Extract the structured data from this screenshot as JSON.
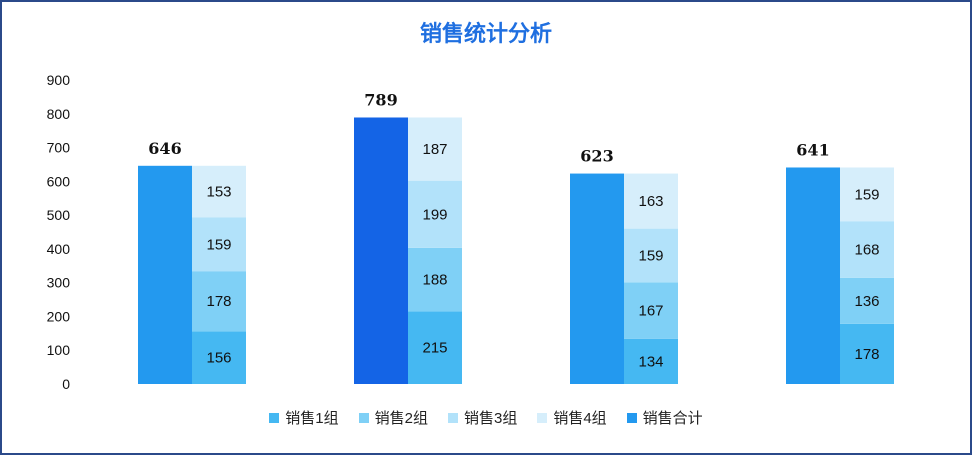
{
  "chart_data": {
    "type": "bar",
    "title": "销售统计分析",
    "yticks": [
      0,
      100,
      200,
      300,
      400,
      500,
      600,
      700,
      800,
      900
    ],
    "ylim": [
      0,
      900
    ],
    "legend_position": "bottom",
    "categories": [
      "",
      "",
      "",
      ""
    ],
    "series": [
      {
        "name": "销售1组",
        "color": "#45b8f2",
        "values": [
          156,
          215,
          134,
          178
        ]
      },
      {
        "name": "销售2组",
        "color": "#7fd0f6",
        "values": [
          178,
          188,
          167,
          136
        ]
      },
      {
        "name": "销售3组",
        "color": "#b2e2fa",
        "values": [
          159,
          199,
          159,
          168
        ]
      },
      {
        "name": "销售4组",
        "color": "#d6eefb",
        "values": [
          153,
          187,
          163,
          159
        ]
      }
    ],
    "totals": {
      "name": "销售合计",
      "color": "#2399ef",
      "highlight_color": "#1464e6",
      "highlight_index": 1,
      "values": [
        646,
        789,
        623,
        641
      ]
    }
  }
}
